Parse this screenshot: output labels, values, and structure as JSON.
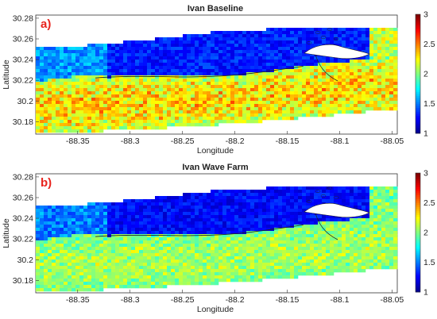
{
  "colors": {
    "jet": [
      "#00008f",
      "#0000ff",
      "#0080ff",
      "#00ffff",
      "#80ff80",
      "#ffff00",
      "#ff8000",
      "#ff0000",
      "#800000"
    ],
    "panel_label": "#e8231d",
    "land": "#ffffff",
    "outline": "#222222"
  },
  "chart_data": [
    {
      "type": "heatmap",
      "panel_label": "a)",
      "title": "Ivan Baseline",
      "xlabel": "Longitude",
      "ylabel": "Latitude",
      "xlim": [
        -88.39,
        -88.045
      ],
      "ylim": [
        30.168,
        30.283
      ],
      "xticks": [
        -88.35,
        -88.3,
        -88.25,
        -88.2,
        -88.15,
        -88.1,
        -88.05
      ],
      "xtick_labels": [
        "-88.35",
        "-88.3",
        "-88.25",
        "-88.2",
        "-88.15",
        "-88.1",
        "-88.05"
      ],
      "yticks": [
        30.18,
        30.2,
        30.22,
        30.24,
        30.26,
        30.28
      ],
      "ytick_labels": [
        "30.18",
        "30.2",
        "30.22",
        "30.24",
        "30.26",
        "30.28"
      ],
      "colorbar": {
        "range": [
          1,
          3
        ],
        "ticks": [
          1,
          1.5,
          2,
          2.5,
          3
        ],
        "tick_labels": [
          "1",
          "1.5",
          "2",
          "2.5",
          "3"
        ],
        "colormap": "jet"
      },
      "field": {
        "offshore_mean": 2.15,
        "nearshore_mean": 1.3,
        "noise_amplitude": 0.22,
        "mid_band_boost": 0.18,
        "barrier_island_lee_mean": 1.15
      }
    },
    {
      "type": "heatmap",
      "panel_label": "b)",
      "title": "Ivan Wave Farm",
      "xlabel": "Longitude",
      "ylabel": "Latitude",
      "xlim": [
        -88.39,
        -88.045
      ],
      "ylim": [
        30.168,
        30.283
      ],
      "xticks": [
        -88.35,
        -88.3,
        -88.25,
        -88.2,
        -88.15,
        -88.1,
        -88.05
      ],
      "xtick_labels": [
        "-88.35",
        "-88.3",
        "-88.25",
        "-88.2",
        "-88.15",
        "-88.1",
        "-88.05"
      ],
      "yticks": [
        30.18,
        30.2,
        30.22,
        30.24,
        30.26,
        30.28
      ],
      "ytick_labels": [
        "30.18",
        "30.2",
        "30.22",
        "30.24",
        "30.26",
        "30.28"
      ],
      "colorbar": {
        "range": [
          1,
          3
        ],
        "ticks": [
          1,
          1.5,
          2,
          2.5,
          3
        ],
        "tick_labels": [
          "1",
          "1.5",
          "2",
          "2.5",
          "3"
        ],
        "colormap": "jet"
      },
      "field": {
        "offshore_mean": 2.0,
        "nearshore_mean": 1.25,
        "noise_amplitude": 0.14,
        "mid_band_boost": 0.08,
        "barrier_island_lee_mean": 1.1
      }
    }
  ]
}
